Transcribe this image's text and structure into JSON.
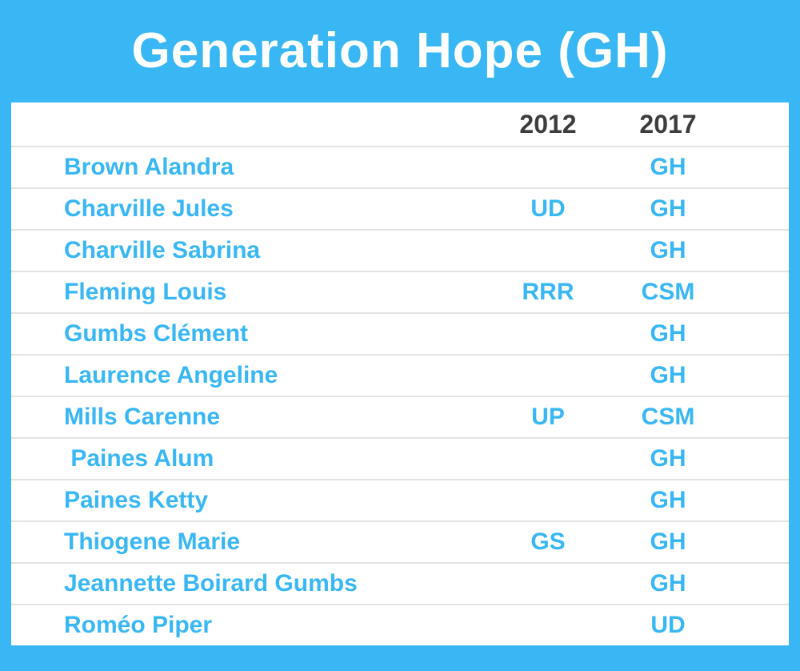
{
  "page": {
    "title": "Generation Hope (GH)",
    "colors": {
      "background_blue": "#39B7F4",
      "title_text": "#FFFFFF",
      "card_background": "#FFFFFF",
      "name_text": "#39B7F4",
      "header_text": "#3D3D3D",
      "divider": "#E4E4E4"
    }
  },
  "chart_data": {
    "type": "table",
    "title": "Generation Hope (GH)",
    "columns": [
      "name",
      "2012",
      "2017"
    ],
    "column_headers": [
      "2012",
      "2017"
    ],
    "rows": [
      {
        "name": "Brown Alandra",
        "2012": "",
        "2017": "GH"
      },
      {
        "name": "Charville Jules",
        "2012": "UD",
        "2017": "GH"
      },
      {
        "name": "Charville Sabrina",
        "2012": "",
        "2017": "GH"
      },
      {
        "name": "Fleming Louis",
        "2012": "RRR",
        "2017": "CSM"
      },
      {
        "name": "Gumbs Clément",
        "2012": "",
        "2017": "GH"
      },
      {
        "name": "Laurence Angeline",
        "2012": "",
        "2017": "GH"
      },
      {
        "name": "Mills Carenne",
        "2012": "UP",
        "2017": "CSM"
      },
      {
        "name": " Paines Alum",
        "2012": "",
        "2017": "GH"
      },
      {
        "name": "Paines Ketty",
        "2012": "",
        "2017": "GH"
      },
      {
        "name": "Thiogene Marie",
        "2012": "GS",
        "2017": "GH"
      },
      {
        "name": "Jeannette Boirard Gumbs",
        "2012": "",
        "2017": "GH"
      },
      {
        "name": "Roméo Piper",
        "2012": "",
        "2017": "UD"
      }
    ]
  }
}
